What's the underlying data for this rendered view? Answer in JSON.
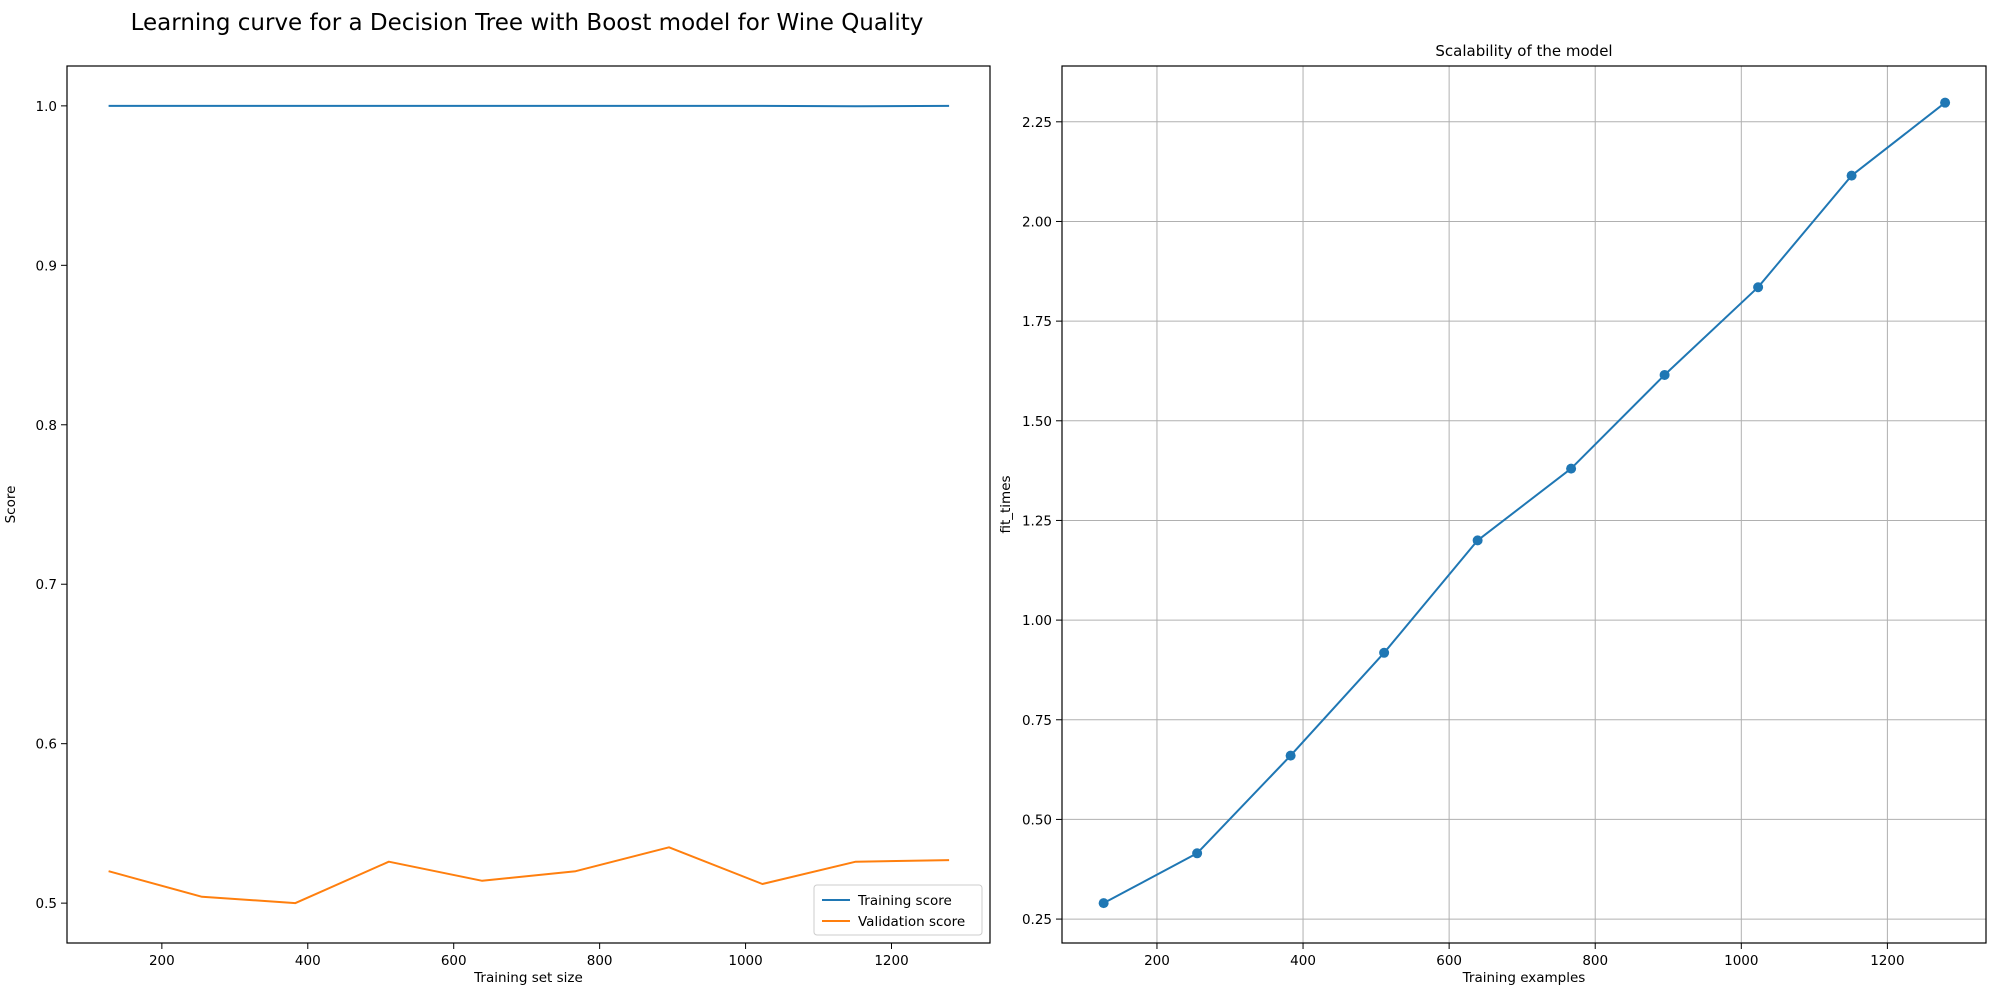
{
  "figure": {
    "suptitle": "Learning curve for a Decision Tree with Boost model for Wine Quality"
  },
  "chart_data": [
    {
      "type": "line",
      "title": "",
      "xlabel": "Training set size",
      "ylabel": "Score",
      "x": [
        127,
        255,
        383,
        511,
        639,
        767,
        895,
        1023,
        1151,
        1279
      ],
      "xlim": [
        70,
        1335
      ],
      "ylim": [
        0.475,
        1.025
      ],
      "xticks": [
        200,
        400,
        600,
        800,
        1000,
        1200
      ],
      "xtick_labels": [
        "200",
        "400",
        "600",
        "800",
        "1000",
        "1200"
      ],
      "yticks": [
        0.5,
        0.6,
        0.7,
        0.8,
        0.9,
        1.0
      ],
      "ytick_labels": [
        "0.5",
        "0.6",
        "0.7",
        "0.8",
        "0.9",
        "1.0"
      ],
      "grid": false,
      "legend_position": "lower-right",
      "series": [
        {
          "name": "Training score",
          "color": "#1f77b4",
          "values": [
            1.0,
            1.0,
            1.0,
            1.0,
            1.0,
            1.0,
            1.0,
            1.0,
            0.9998,
            1.0
          ]
        },
        {
          "name": "Validation score",
          "color": "#ff7f0e",
          "values": [
            0.52,
            0.504,
            0.5,
            0.526,
            0.514,
            0.52,
            0.535,
            0.512,
            0.526,
            0.527
          ]
        }
      ]
    },
    {
      "type": "line",
      "title": "Scalability of the model",
      "xlabel": "Training examples",
      "ylabel": "fit_times",
      "x": [
        127,
        255,
        383,
        511,
        639,
        767,
        895,
        1023,
        1151,
        1279
      ],
      "xlim": [
        70,
        1335
      ],
      "ylim": [
        0.19,
        2.39
      ],
      "xticks": [
        200,
        400,
        600,
        800,
        1000,
        1200
      ],
      "xtick_labels": [
        "200",
        "400",
        "600",
        "800",
        "1000",
        "1200"
      ],
      "yticks": [
        0.25,
        0.5,
        0.75,
        1.0,
        1.25,
        1.5,
        1.75,
        2.0,
        2.25
      ],
      "ytick_labels": [
        "0.25",
        "0.50",
        "0.75",
        "1.00",
        "1.25",
        "1.50",
        "1.75",
        "2.00",
        "2.25"
      ],
      "grid": true,
      "markers": true,
      "series": [
        {
          "color": "#1f77b4",
          "values": [
            0.29,
            0.415,
            0.66,
            0.918,
            1.2,
            1.38,
            1.615,
            1.835,
            2.115,
            2.298
          ]
        }
      ]
    }
  ]
}
